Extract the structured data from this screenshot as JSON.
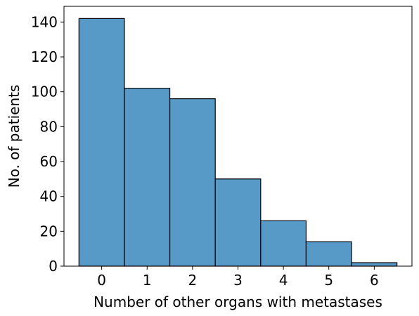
{
  "chart_data": {
    "type": "bar",
    "title": "",
    "xlabel": "Number of other organs with metastases",
    "ylabel": "No. of patients",
    "categories": [
      "0",
      "1",
      "2",
      "3",
      "4",
      "5",
      "6"
    ],
    "values": [
      142,
      102,
      96,
      50,
      26,
      14,
      2
    ],
    "xlim": [
      -0.83,
      6.83
    ],
    "ylim": [
      0,
      149
    ],
    "yticks": [
      "0",
      "20",
      "40",
      "60",
      "80",
      "100",
      "120",
      "140"
    ],
    "grid": false,
    "legend": "none",
    "bar_color": "#5799c7",
    "edge_color": "#000000"
  }
}
